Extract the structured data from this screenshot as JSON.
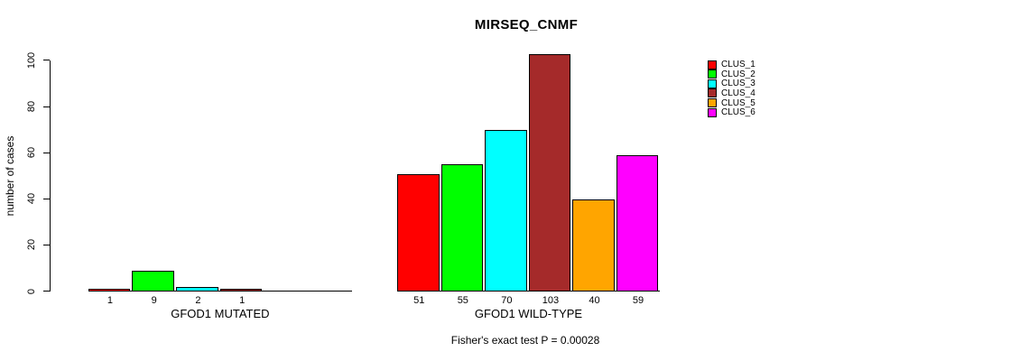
{
  "chart_data": {
    "type": "bar",
    "title": "MIRSEQ_CNMF",
    "ylabel": "number of cases",
    "xlabel": "",
    "ylim": [
      0,
      100
    ],
    "yticks": [
      0,
      20,
      40,
      60,
      80,
      100
    ],
    "grid": false,
    "legend_position": "top-right",
    "series": [
      {
        "name": "CLUS_1",
        "color": "#FF0000",
        "values": [
          1,
          51
        ]
      },
      {
        "name": "CLUS_2",
        "color": "#00FF00",
        "values": [
          9,
          55
        ]
      },
      {
        "name": "CLUS_3",
        "color": "#00FFFF",
        "values": [
          2,
          70
        ]
      },
      {
        "name": "CLUS_4",
        "color": "#A52A2A",
        "values": [
          1,
          103
        ]
      },
      {
        "name": "CLUS_5",
        "color": "#FFA500",
        "values": [
          0,
          40
        ]
      },
      {
        "name": "CLUS_6",
        "color": "#FF00FF",
        "values": [
          0,
          59
        ]
      }
    ],
    "groups": [
      {
        "label": "GFOD1 MUTATED",
        "values": [
          1,
          9,
          2,
          1,
          0,
          0
        ],
        "bar_labels": [
          "1",
          "9",
          "2",
          "1",
          "",
          ""
        ]
      },
      {
        "label": "GFOD1 WILD-TYPE",
        "values": [
          51,
          55,
          70,
          103,
          40,
          59
        ],
        "bar_labels": [
          "51",
          "55",
          "70",
          "103",
          "40",
          "59"
        ]
      }
    ],
    "annotation": "Fisher's exact test P = 0.00028"
  }
}
